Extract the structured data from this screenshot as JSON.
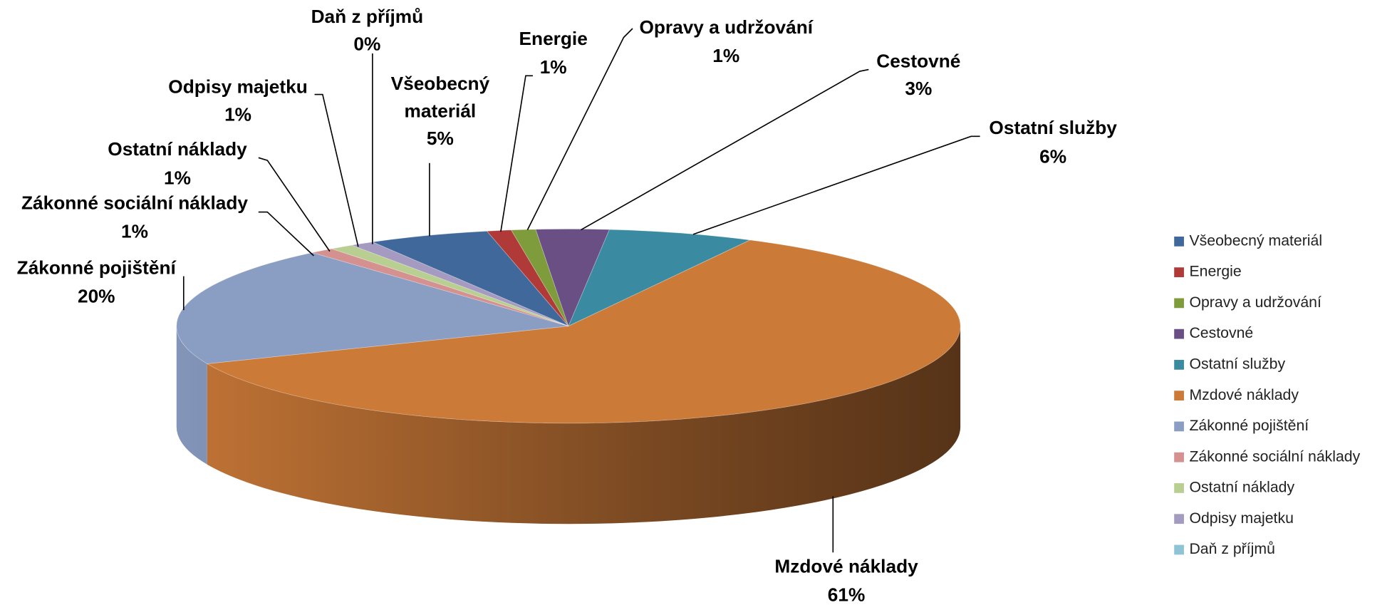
{
  "chart_data": {
    "type": "pie",
    "categories": [
      "Všeobecný materiál",
      "Energie",
      "Opravy a udržování",
      "Cestovné",
      "Ostatní služby",
      "Mzdové náklady",
      "Zákonné pojištění",
      "Zákonné sociální náklady",
      "Ostatní náklady",
      "Odpisy majetku",
      "Daň z příjmů"
    ],
    "values": [
      5,
      1,
      1,
      3,
      6,
      61,
      20,
      1,
      1,
      1,
      0
    ],
    "value_labels": [
      "5%",
      "1%",
      "1%",
      "3%",
      "6%",
      "61%",
      "20%",
      "1%",
      "1%",
      "1%",
      "0%"
    ],
    "colors": [
      "#40689a",
      "#b03a38",
      "#7f9c3c",
      "#6a4f85",
      "#3a8ba1",
      "#cc7a38",
      "#8a9dc3",
      "#d4918f",
      "#b9cf92",
      "#a59bc1",
      "#8fc4d7"
    ],
    "legend": "right"
  }
}
